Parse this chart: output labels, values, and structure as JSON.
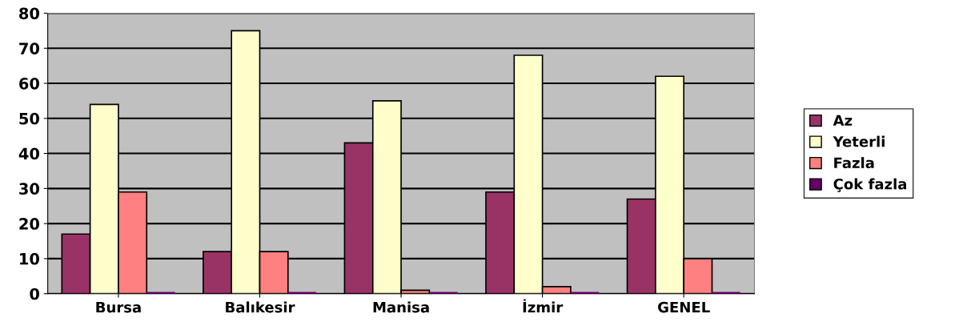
{
  "chart_data": {
    "type": "bar",
    "categories": [
      "Bursa",
      "Balıkesir",
      "Manisa",
      "İzmir",
      "GENEL"
    ],
    "series": [
      {
        "name": "Az",
        "color": "#993366",
        "values": [
          17,
          12,
          43,
          29,
          27
        ]
      },
      {
        "name": "Yeterli",
        "color": "#ffffcc",
        "values": [
          54,
          75,
          55,
          68,
          62
        ]
      },
      {
        "name": "Fazla",
        "color": "#ff8080",
        "values": [
          29,
          12,
          1,
          2,
          10
        ]
      },
      {
        "name": "Çok fazla",
        "color": "#660066",
        "values": [
          0,
          0,
          0,
          0,
          0
        ]
      }
    ],
    "ylim": [
      0,
      80
    ],
    "yticks": [
      0,
      10,
      20,
      30,
      40,
      50,
      60,
      70,
      80
    ],
    "grid": "y",
    "legend": "right"
  }
}
